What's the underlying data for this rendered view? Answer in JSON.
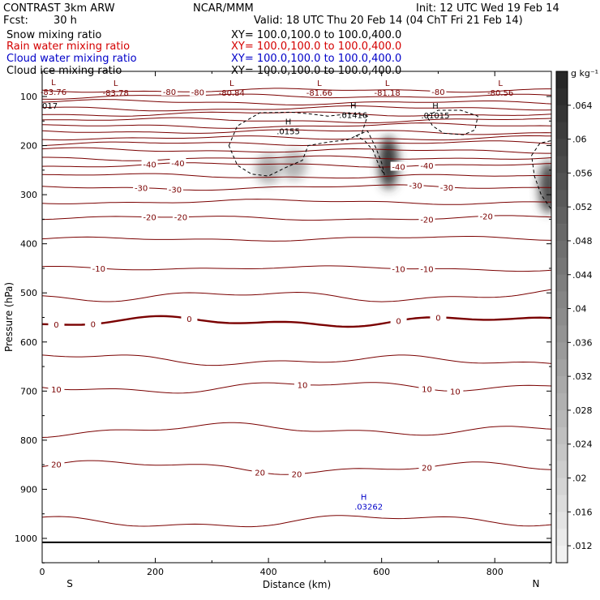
{
  "header": {
    "model": "CONTRAST  3km ARW",
    "org": "NCAR/MMM",
    "init": "Init: 12 UTC Wed 19 Feb 14",
    "fcst_label": "Fcst:",
    "fcst_value": "30 h",
    "valid": "Valid: 18 UTC Thu 20 Feb 14 (04 ChT Fri 21 Feb 14)"
  },
  "fields": [
    {
      "name": "Snow mixing ratio",
      "xy": "XY= 100.0,100.0 to 100.0,400.0",
      "color": "#000000"
    },
    {
      "name": "Rain water mixing ratio",
      "xy": "XY= 100.0,100.0 to 100.0,400.0",
      "color": "#d40000"
    },
    {
      "name": "Cloud water mixing ratio",
      "xy": "XY= 100.0,100.0 to 100.0,400.0",
      "color": "#0000c8"
    },
    {
      "name": "Cloud ice mixing ratio",
      "xy": "XY= 100.0,100.0 to 100.0,400.0",
      "color": "#000000"
    }
  ],
  "colors": {
    "temperature": "#7a0000",
    "freezing": "#7a0000",
    "cloudwater": "#0000c8"
  },
  "chart_data": {
    "type": "cross-section",
    "xlabel": "Distance (km)",
    "ylabel": "Pressure (hPa)",
    "xlim": [
      0,
      900
    ],
    "ylim": [
      1050,
      60
    ],
    "x_ticks": [
      0,
      200,
      400,
      600,
      800
    ],
    "x_tick_labels": [
      "0",
      "200",
      "400",
      "600",
      "800"
    ],
    "y_ticks": [
      100,
      200,
      300,
      400,
      500,
      600,
      700,
      800,
      900,
      1000
    ],
    "y_tick_labels": [
      "100",
      "200",
      "300",
      "400",
      "500",
      "600",
      "700",
      "800",
      "900",
      "1000"
    ],
    "end_labels": {
      "left": "S",
      "right": "N"
    },
    "colorbar": {
      "unit": "g kg⁻¹",
      "min": 0.01,
      "max": 0.068,
      "step": 0.002,
      "tick_labels": [
        ".064",
        ".06",
        ".056",
        ".052",
        ".048",
        ".044",
        ".04",
        ".036",
        ".032",
        ".028",
        ".024",
        ".02",
        ".016",
        ".012"
      ],
      "tick_values": [
        0.064,
        0.06,
        0.056,
        0.052,
        0.048,
        0.044,
        0.04,
        0.036,
        0.032,
        0.028,
        0.024,
        0.02,
        0.016,
        0.012
      ]
    },
    "ground_pressure_hPa": 1008,
    "temperature_contours": [
      {
        "p_hPa": 87,
        "labels": [
          {
            "x": 225,
            "text": "-80"
          },
          {
            "x": 275,
            "text": "-80"
          },
          {
            "x": 700,
            "text": "-80"
          }
        ]
      },
      {
        "p_hPa": 100
      },
      {
        "p_hPa": 112
      },
      {
        "p_hPa": 124
      },
      {
        "p_hPa": 136
      },
      {
        "p_hPa": 148
      },
      {
        "p_hPa": 160
      },
      {
        "p_hPa": 172
      },
      {
        "p_hPa": 184
      },
      {
        "p_hPa": 196
      },
      {
        "p_hPa": 210
      },
      {
        "p_hPa": 225
      },
      {
        "p_hPa": 240,
        "labels": [
          {
            "x": 190,
            "text": "-40"
          },
          {
            "x": 240,
            "text": "-40"
          },
          {
            "x": 630,
            "text": "-40"
          },
          {
            "x": 680,
            "text": "-40"
          }
        ]
      },
      {
        "p_hPa": 262
      },
      {
        "p_hPa": 285,
        "labels": [
          {
            "x": 175,
            "text": "-30"
          },
          {
            "x": 235,
            "text": "-30"
          },
          {
            "x": 660,
            "text": "-30"
          },
          {
            "x": 715,
            "text": "-30"
          }
        ]
      },
      {
        "p_hPa": 315
      },
      {
        "p_hPa": 347,
        "labels": [
          {
            "x": 190,
            "text": "-20"
          },
          {
            "x": 245,
            "text": "-20"
          },
          {
            "x": 680,
            "text": "-20"
          },
          {
            "x": 785,
            "text": "-20"
          }
        ]
      },
      {
        "p_hPa": 390
      },
      {
        "p_hPa": 450,
        "labels": [
          {
            "x": 100,
            "text": "-10"
          },
          {
            "x": 630,
            "text": "-10"
          },
          {
            "x": 680,
            "text": "-10"
          }
        ]
      },
      {
        "p_hPa": 505
      },
      {
        "p_hPa": 560,
        "freezing": true,
        "labels": [
          {
            "x": 25,
            "text": "0"
          },
          {
            "x": 90,
            "text": "0"
          },
          {
            "x": 260,
            "text": "0"
          },
          {
            "x": 630,
            "text": "0"
          },
          {
            "x": 700,
            "text": "0"
          }
        ]
      },
      {
        "p_hPa": 637
      },
      {
        "p_hPa": 690,
        "labels": [
          {
            "x": 25,
            "text": "10"
          },
          {
            "x": 460,
            "text": "10"
          },
          {
            "x": 680,
            "text": "10"
          },
          {
            "x": 730,
            "text": "10"
          }
        ]
      },
      {
        "p_hPa": 780
      },
      {
        "p_hPa": 855,
        "labels": [
          {
            "x": 25,
            "text": "20"
          },
          {
            "x": 385,
            "text": "20"
          },
          {
            "x": 450,
            "text": "20"
          },
          {
            "x": 680,
            "text": "20"
          }
        ]
      },
      {
        "p_hPa": 965
      }
    ],
    "extrema": [
      {
        "x": 20,
        "p_hPa": 90,
        "marker": "L",
        "value": "-83.76"
      },
      {
        "x": 130,
        "p_hPa": 92,
        "marker": "L",
        "value": "-83.78"
      },
      {
        "x": 335,
        "p_hPa": 92,
        "marker": "L",
        "value": "-80.84"
      },
      {
        "x": 490,
        "p_hPa": 92,
        "marker": "L",
        "value": "-81.66"
      },
      {
        "x": 610,
        "p_hPa": 92,
        "marker": "L",
        "value": "-81.18"
      },
      {
        "x": 810,
        "p_hPa": 92,
        "marker": "L",
        "value": "-80.56"
      },
      {
        "x": 0,
        "p_hPa": 118,
        "marker": "",
        "value": "017"
      },
      {
        "x": 435,
        "p_hPa": 170,
        "marker": "H",
        "value": ".0155"
      },
      {
        "x": 550,
        "p_hPa": 137,
        "marker": "H",
        "value": ".01416"
      },
      {
        "x": 695,
        "p_hPa": 138,
        "marker": "H",
        "value": ".01015"
      }
    ],
    "cloud_water_max": {
      "x": 577,
      "p_hPa": 925,
      "marker": "H",
      "value": ".03262"
    },
    "snow_shading": [
      {
        "x": 400,
        "p_hPa": 248,
        "value": 0.03
      },
      {
        "x": 445,
        "p_hPa": 240,
        "value": 0.028
      },
      {
        "x": 612,
        "p_hPa": 235,
        "value": 0.062
      },
      {
        "x": 895,
        "p_hPa": 285,
        "value": 0.056
      }
    ],
    "ice_contour_regions": [
      {
        "label": "cloud-ice-west"
      },
      {
        "label": "cloud-ice-central"
      },
      {
        "label": "cloud-ice-east"
      }
    ]
  }
}
